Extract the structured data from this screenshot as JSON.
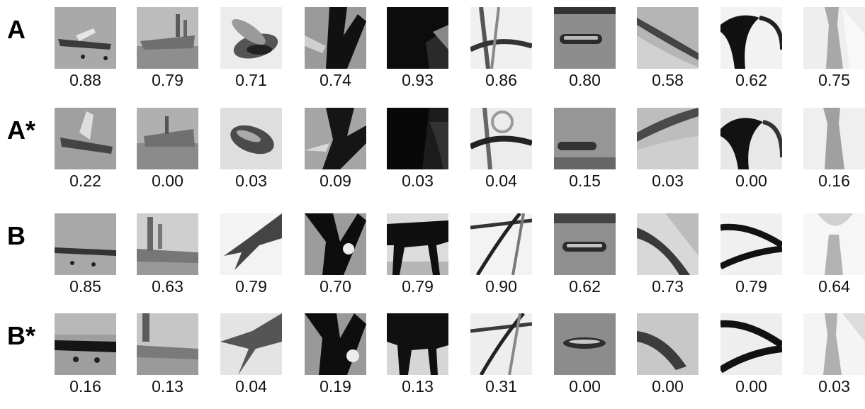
{
  "rows": [
    {
      "label": "A",
      "scores": [
        "0.88",
        "0.79",
        "0.71",
        "0.74",
        "0.93",
        "0.86",
        "0.80",
        "0.58",
        "0.62",
        "0.75"
      ]
    },
    {
      "label": "A*",
      "scores": [
        "0.22",
        "0.00",
        "0.03",
        "0.09",
        "0.03",
        "0.04",
        "0.15",
        "0.03",
        "0.00",
        "0.16"
      ]
    },
    {
      "label": "B",
      "scores": [
        "0.85",
        "0.63",
        "0.79",
        "0.70",
        "0.79",
        "0.90",
        "0.62",
        "0.73",
        "0.79",
        "0.64"
      ]
    },
    {
      "label": "B*",
      "scores": [
        "0.16",
        "0.13",
        "0.04",
        "0.19",
        "0.13",
        "0.31",
        "0.00",
        "0.00",
        "0.00",
        "0.03"
      ]
    }
  ],
  "thumbnail_subjects": [
    "airplane",
    "ship",
    "insect-wing",
    "bird-silhouette",
    "horse",
    "bicycle",
    "car-door-handle",
    "eye",
    "eyeglasses",
    "necktie"
  ]
}
